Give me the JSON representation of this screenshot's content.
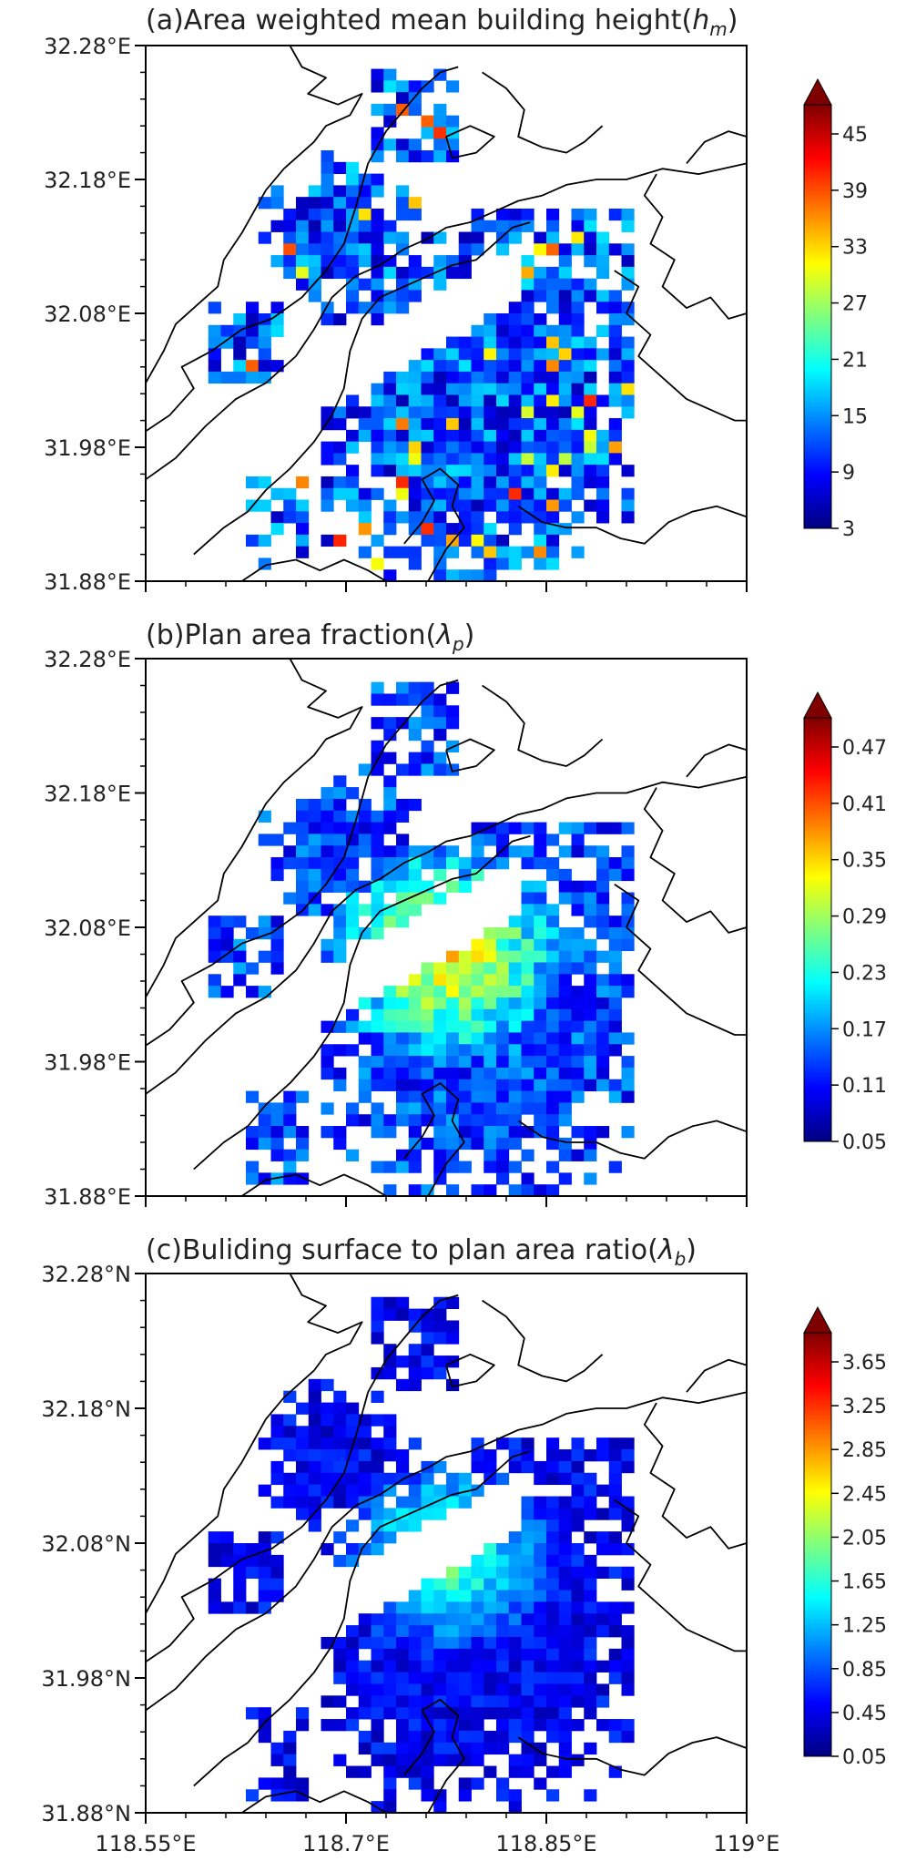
{
  "figure": {
    "x_axis_labels": [
      "118.55°E",
      "118.7°E",
      "118.85°E",
      "119°E"
    ],
    "colors": {
      "coastline": "#000000",
      "frame": "#000000",
      "jet": [
        "#00007f",
        "#0000ff",
        "#007fff",
        "#00ffff",
        "#7fff7f",
        "#ffff00",
        "#ff7f00",
        "#ff0000",
        "#7f0000"
      ]
    }
  },
  "chart_data": [
    {
      "type": "heatmap",
      "title": "(a)Area weighted mean building height(h_m)",
      "title_prefix": "(a)Area weighted mean building height(",
      "title_var": "h",
      "title_sub": "m",
      "title_suffix": ")",
      "y_tick_labels": [
        "32.28°E",
        "32.18°E",
        "32.08°E",
        "31.98°E",
        "31.88°E"
      ],
      "x_tick_labels": [],
      "colorbar_ticks": [
        "45",
        "39",
        "33",
        "27",
        "21",
        "15",
        "9",
        "3"
      ],
      "value_range": [
        3,
        48
      ],
      "seed": 17
    },
    {
      "type": "heatmap",
      "title": "(b)Plan area fraction(λ_p)",
      "title_prefix": "(b)Plan area fraction(",
      "title_var": "λ",
      "title_sub": "p",
      "title_suffix": ")",
      "y_tick_labels": [
        "32.28°E",
        "32.18°E",
        "32.08°E",
        "31.98°E",
        "31.88°E"
      ],
      "x_tick_labels": [],
      "colorbar_ticks": [
        "0.47",
        "0.41",
        "0.35",
        "0.29",
        "0.23",
        "0.17",
        "0.11",
        "0.05"
      ],
      "value_range": [
        0.05,
        0.5
      ],
      "seed": 41
    },
    {
      "type": "heatmap",
      "title": "(c)Buliding surface to plan area ratio(λ_b)",
      "title_prefix": "(c)Buliding surface to plan area ratio(",
      "title_var": "λ",
      "title_sub": "b",
      "title_suffix": ")",
      "y_tick_labels": [
        "32.28°N",
        "32.18°N",
        "32.08°N",
        "31.98°N",
        "31.88°N"
      ],
      "x_tick_labels": [
        "118.55°E",
        "118.7°E",
        "118.85°E",
        "119°E"
      ],
      "colorbar_ticks": [
        "3.65",
        "3.25",
        "2.85",
        "2.45",
        "2.05",
        "1.65",
        "1.25",
        "0.85",
        "0.45",
        "0.05"
      ],
      "value_range": [
        0.05,
        4.0
      ],
      "seed": 73
    }
  ]
}
